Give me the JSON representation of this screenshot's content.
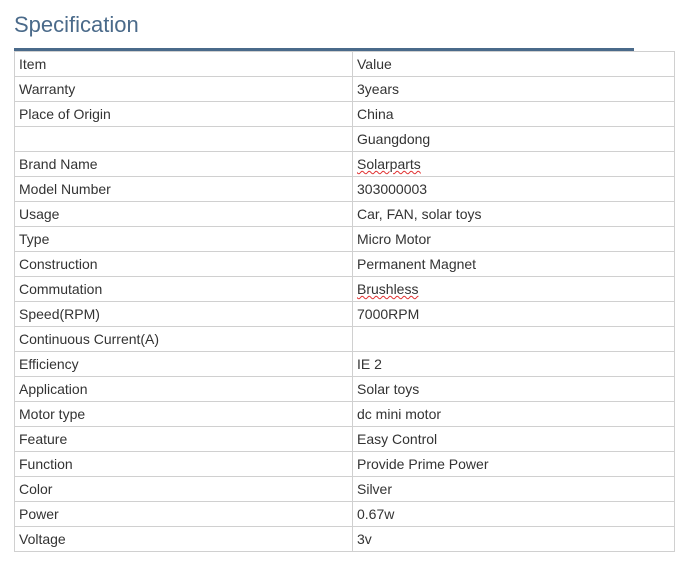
{
  "heading": "Specification",
  "table": {
    "columns": [
      "Item",
      "Value"
    ],
    "rows": [
      {
        "item": "Item",
        "value": "Value",
        "item_spell": false,
        "value_spell": false
      },
      {
        "item": "Warranty",
        "value": "3years",
        "item_spell": false,
        "value_spell": false
      },
      {
        "item": "Place of Origin",
        "value": "China",
        "item_spell": false,
        "value_spell": false
      },
      {
        "item": "",
        "value": "Guangdong",
        "item_spell": false,
        "value_spell": false
      },
      {
        "item": "Brand Name",
        "value": "Solarparts",
        "item_spell": false,
        "value_spell": true
      },
      {
        "item": "Model Number",
        "value": "303000003",
        "item_spell": false,
        "value_spell": false
      },
      {
        "item": "Usage",
        "value": "Car, FAN, solar toys",
        "item_spell": false,
        "value_spell": false
      },
      {
        "item": "Type",
        "value": "Micro Motor",
        "item_spell": false,
        "value_spell": false
      },
      {
        "item": "Construction",
        "value": "Permanent Magnet",
        "item_spell": false,
        "value_spell": false
      },
      {
        "item": "Commutation",
        "value": "Brushless",
        "item_spell": false,
        "value_spell": true
      },
      {
        "item": "Speed(RPM)",
        "value": "7000RPM",
        "item_spell": false,
        "value_spell": false
      },
      {
        "item": "Continuous Current(A)",
        "value": "",
        "item_spell": false,
        "value_spell": false
      },
      {
        "item": "Efficiency",
        "value": "IE 2",
        "item_spell": false,
        "value_spell": false
      },
      {
        "item": "Application",
        "value": "Solar toys",
        "item_spell": false,
        "value_spell": false
      },
      {
        "item": "Motor type",
        "value": "dc mini motor",
        "item_spell": false,
        "value_spell": false
      },
      {
        "item": "Feature",
        "value": "Easy Control",
        "item_spell": false,
        "value_spell": false
      },
      {
        "item": "Function",
        "value": "Provide Prime Power",
        "item_spell": false,
        "value_spell": false
      },
      {
        "item": "Color",
        "value": "Silver",
        "item_spell": false,
        "value_spell": false
      },
      {
        "item": "Power",
        "value": "0.67w",
        "item_spell": false,
        "value_spell": false
      },
      {
        "item": "Voltage",
        "value": "3v",
        "item_spell": false,
        "value_spell": false
      }
    ]
  },
  "colors": {
    "heading": "#4a6a8a",
    "border": "#d0d0d0",
    "text": "#333333",
    "spell_underline": "#e03030",
    "background": "#ffffff"
  }
}
